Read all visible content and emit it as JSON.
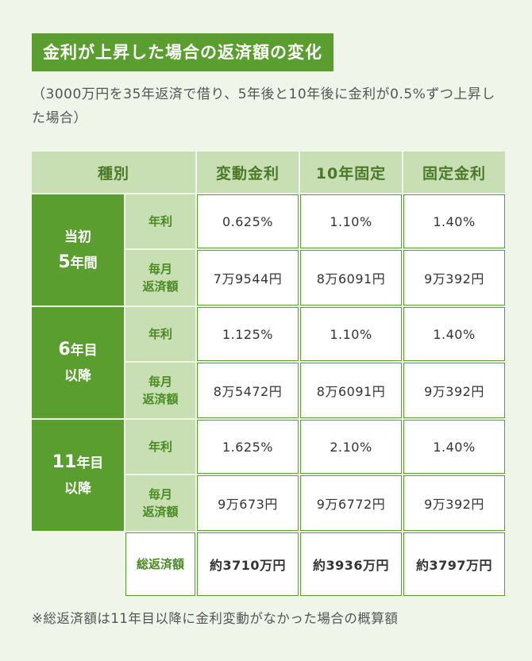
{
  "title": "金利が上昇した場合の返済額の変化",
  "subtitle": "（3000万円を35年返済で借り、5年後と10年後に金利が0.5%ずつ上昇した場合）",
  "table": {
    "header": {
      "type": "種別",
      "cols": [
        "変動金利",
        "10年固定",
        "固定金利"
      ]
    },
    "row_labels": {
      "rate": "年利",
      "monthly_line1": "毎月",
      "monthly_line2": "返済額",
      "total": "総返済額"
    },
    "periods": [
      {
        "line1": "当初",
        "line2_num": "5",
        "line2_text": "年間",
        "rates": [
          "0.625%",
          "1.10%",
          "1.40%"
        ],
        "monthly": [
          "7万9544円",
          "8万6091円",
          "9万392円"
        ]
      },
      {
        "line1_num": "6",
        "line1_text": "年目",
        "line2": "以降",
        "rates": [
          "1.125%",
          "1.10%",
          "1.40%"
        ],
        "monthly": [
          "8万5472円",
          "8万6091円",
          "9万392円"
        ]
      },
      {
        "line1_num": "11",
        "line1_text": "年目",
        "line2": "以降",
        "rates": [
          "1.625%",
          "2.10%",
          "1.40%"
        ],
        "monthly": [
          "9万673円",
          "9万6772円",
          "9万392円"
        ]
      }
    ],
    "totals": [
      "約3710万円",
      "約3936万円",
      "約3797万円"
    ]
  },
  "note": "※総返済額は11年目以降に金利変動がなかった場合の概算額"
}
